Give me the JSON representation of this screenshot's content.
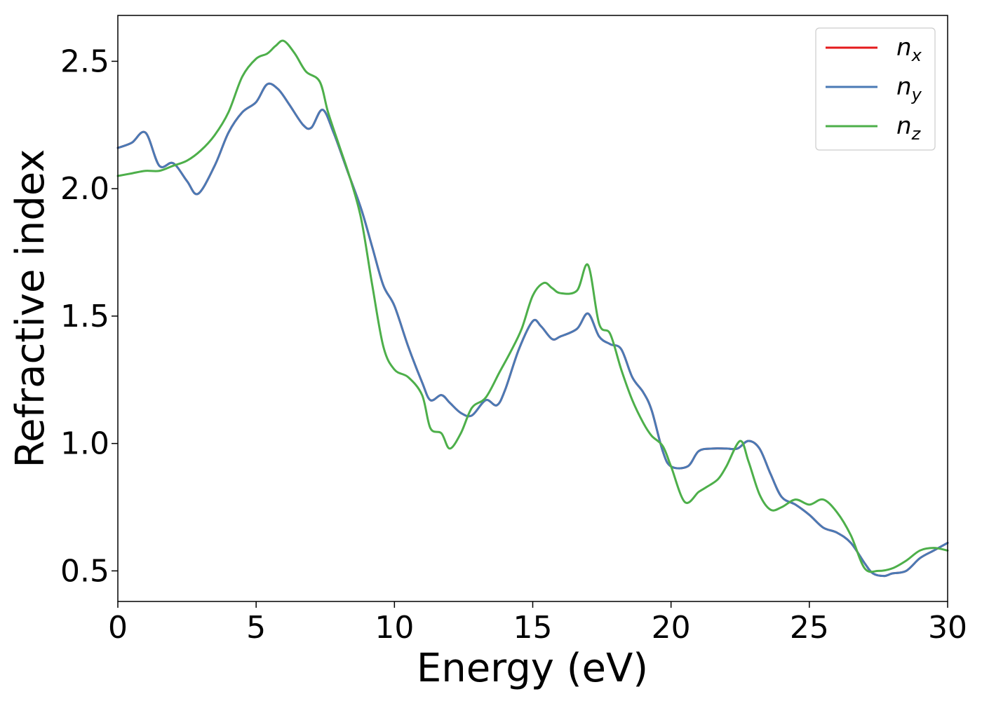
{
  "chart_data": {
    "type": "line",
    "xlabel": "Energy (eV)",
    "ylabel": "Refractive index",
    "xlim": [
      0,
      30
    ],
    "ylim": [
      0.38,
      2.68
    ],
    "xticks": [
      "0",
      "5",
      "10",
      "15",
      "20",
      "25",
      "30"
    ],
    "yticks": [
      "0.5",
      "1.0",
      "1.5",
      "2.0",
      "2.5"
    ],
    "grid": false,
    "legend_position": "upper-right",
    "series": [
      {
        "name": "n",
        "sub": "x",
        "color": "#e41a1c",
        "x": [
          0,
          0.5,
          1,
          1.5,
          2,
          2.5,
          2.9,
          3.5,
          4,
          4.5,
          5,
          5.4,
          5.8,
          6.2,
          6.7,
          7,
          7.4,
          7.8,
          8.3,
          8.8,
          9.2,
          9.6,
          10,
          10.5,
          11,
          11.3,
          11.7,
          12,
          12.4,
          12.8,
          13.3,
          13.7,
          14,
          14.5,
          15,
          15.3,
          15.7,
          16,
          16.6,
          17,
          17.4,
          17.8,
          18.2,
          18.6,
          19,
          19.3,
          19.7,
          20,
          20.6,
          21,
          21.5,
          22,
          22.4,
          22.8,
          23.2,
          23.6,
          24,
          24.5,
          25,
          25.5,
          26,
          26.5,
          27,
          27.3,
          27.7,
          28,
          28.5,
          29,
          29.5,
          30
        ],
        "y": [
          2.16,
          2.18,
          2.22,
          2.09,
          2.1,
          2.03,
          1.98,
          2.09,
          2.22,
          2.3,
          2.34,
          2.41,
          2.39,
          2.33,
          2.25,
          2.24,
          2.31,
          2.22,
          2.07,
          1.92,
          1.77,
          1.62,
          1.54,
          1.38,
          1.24,
          1.17,
          1.19,
          1.16,
          1.12,
          1.11,
          1.17,
          1.15,
          1.21,
          1.37,
          1.48,
          1.46,
          1.41,
          1.42,
          1.45,
          1.51,
          1.42,
          1.39,
          1.37,
          1.26,
          1.2,
          1.13,
          0.97,
          0.91,
          0.91,
          0.97,
          0.98,
          0.98,
          0.98,
          1.01,
          0.98,
          0.88,
          0.79,
          0.76,
          0.72,
          0.67,
          0.65,
          0.61,
          0.53,
          0.49,
          0.48,
          0.49,
          0.5,
          0.55,
          0.58,
          0.61
        ]
      },
      {
        "name": "n",
        "sub": "y",
        "color": "#4a7ab5",
        "x": [
          0,
          0.5,
          1,
          1.5,
          2,
          2.5,
          2.9,
          3.5,
          4,
          4.5,
          5,
          5.4,
          5.8,
          6.2,
          6.7,
          7,
          7.4,
          7.8,
          8.3,
          8.8,
          9.2,
          9.6,
          10,
          10.5,
          11,
          11.3,
          11.7,
          12,
          12.4,
          12.8,
          13.3,
          13.7,
          14,
          14.5,
          15,
          15.3,
          15.7,
          16,
          16.6,
          17,
          17.4,
          17.8,
          18.2,
          18.6,
          19,
          19.3,
          19.7,
          20,
          20.6,
          21,
          21.5,
          22,
          22.4,
          22.8,
          23.2,
          23.6,
          24,
          24.5,
          25,
          25.5,
          26,
          26.5,
          27,
          27.3,
          27.7,
          28,
          28.5,
          29,
          29.5,
          30
        ],
        "y": [
          2.16,
          2.18,
          2.22,
          2.09,
          2.1,
          2.03,
          1.98,
          2.09,
          2.22,
          2.3,
          2.34,
          2.41,
          2.39,
          2.33,
          2.25,
          2.24,
          2.31,
          2.22,
          2.07,
          1.92,
          1.77,
          1.62,
          1.54,
          1.38,
          1.24,
          1.17,
          1.19,
          1.16,
          1.12,
          1.11,
          1.17,
          1.15,
          1.21,
          1.37,
          1.48,
          1.46,
          1.41,
          1.42,
          1.45,
          1.51,
          1.42,
          1.39,
          1.37,
          1.26,
          1.2,
          1.13,
          0.97,
          0.91,
          0.91,
          0.97,
          0.98,
          0.98,
          0.98,
          1.01,
          0.98,
          0.88,
          0.79,
          0.76,
          0.72,
          0.67,
          0.65,
          0.61,
          0.53,
          0.49,
          0.48,
          0.49,
          0.5,
          0.55,
          0.58,
          0.61
        ]
      },
      {
        "name": "n",
        "sub": "z",
        "color": "#4daf4a",
        "x": [
          0,
          0.5,
          1,
          1.5,
          2,
          2.5,
          3,
          3.5,
          4,
          4.5,
          5,
          5.4,
          5.7,
          6,
          6.4,
          6.8,
          7.3,
          7.6,
          8,
          8.4,
          8.8,
          9.2,
          9.6,
          10,
          10.5,
          11,
          11.3,
          11.7,
          12,
          12.4,
          12.8,
          13.3,
          13.8,
          14.2,
          14.6,
          15,
          15.4,
          15.7,
          16,
          16.6,
          17,
          17.4,
          17.8,
          18.2,
          18.6,
          19,
          19.3,
          19.7,
          20,
          20.5,
          21,
          21.3,
          21.7,
          22,
          22.5,
          22.8,
          23.2,
          23.6,
          24,
          24.5,
          25,
          25.5,
          26,
          26.5,
          27,
          27.5,
          28,
          28.5,
          29,
          29.5,
          30
        ],
        "y": [
          2.05,
          2.06,
          2.07,
          2.07,
          2.09,
          2.11,
          2.15,
          2.21,
          2.3,
          2.44,
          2.51,
          2.53,
          2.56,
          2.58,
          2.53,
          2.46,
          2.42,
          2.3,
          2.17,
          2.04,
          1.88,
          1.62,
          1.38,
          1.29,
          1.26,
          1.19,
          1.06,
          1.04,
          0.98,
          1.04,
          1.14,
          1.18,
          1.28,
          1.36,
          1.45,
          1.58,
          1.63,
          1.61,
          1.59,
          1.6,
          1.7,
          1.47,
          1.43,
          1.29,
          1.17,
          1.08,
          1.03,
          0.99,
          0.91,
          0.77,
          0.81,
          0.83,
          0.86,
          0.91,
          1.01,
          0.93,
          0.8,
          0.74,
          0.75,
          0.78,
          0.76,
          0.78,
          0.73,
          0.64,
          0.51,
          0.5,
          0.51,
          0.54,
          0.58,
          0.59,
          0.58
        ]
      }
    ]
  }
}
